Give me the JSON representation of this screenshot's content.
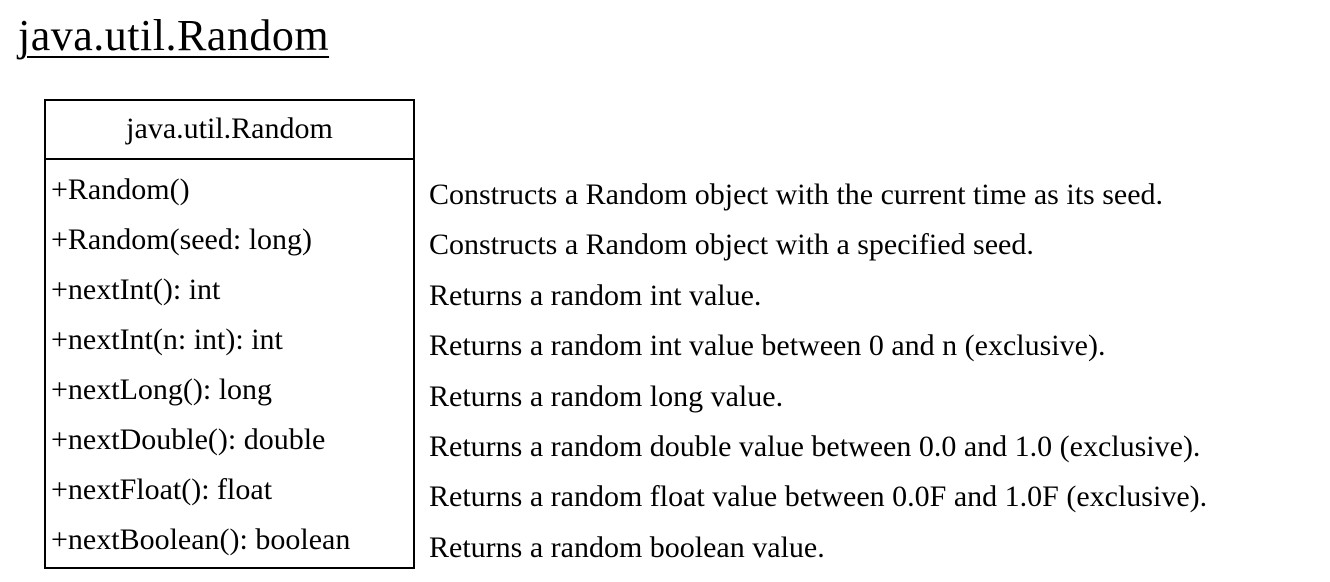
{
  "heading": "java.util.Random",
  "uml_class": {
    "name": "java.util.Random",
    "methods": [
      "+Random()",
      "+Random(seed: long)",
      "+nextInt(): int",
      "+nextInt(n: int): int",
      "+nextLong(): long",
      "+nextDouble(): double",
      "+nextFloat(): float",
      "+nextBoolean(): boolean"
    ]
  },
  "descriptions": [
    "Constructs a Random object with the current time as its seed.",
    "Constructs a Random object with a specified seed.",
    "Returns a random int value.",
    "Returns a random int value between 0 and n (exclusive).",
    "Returns a random long value.",
    "Returns a random double value between 0.0 and 1.0 (exclusive).",
    "Returns a random float value between 0.0F and 1.0F (exclusive).",
    "Returns a random boolean value."
  ]
}
